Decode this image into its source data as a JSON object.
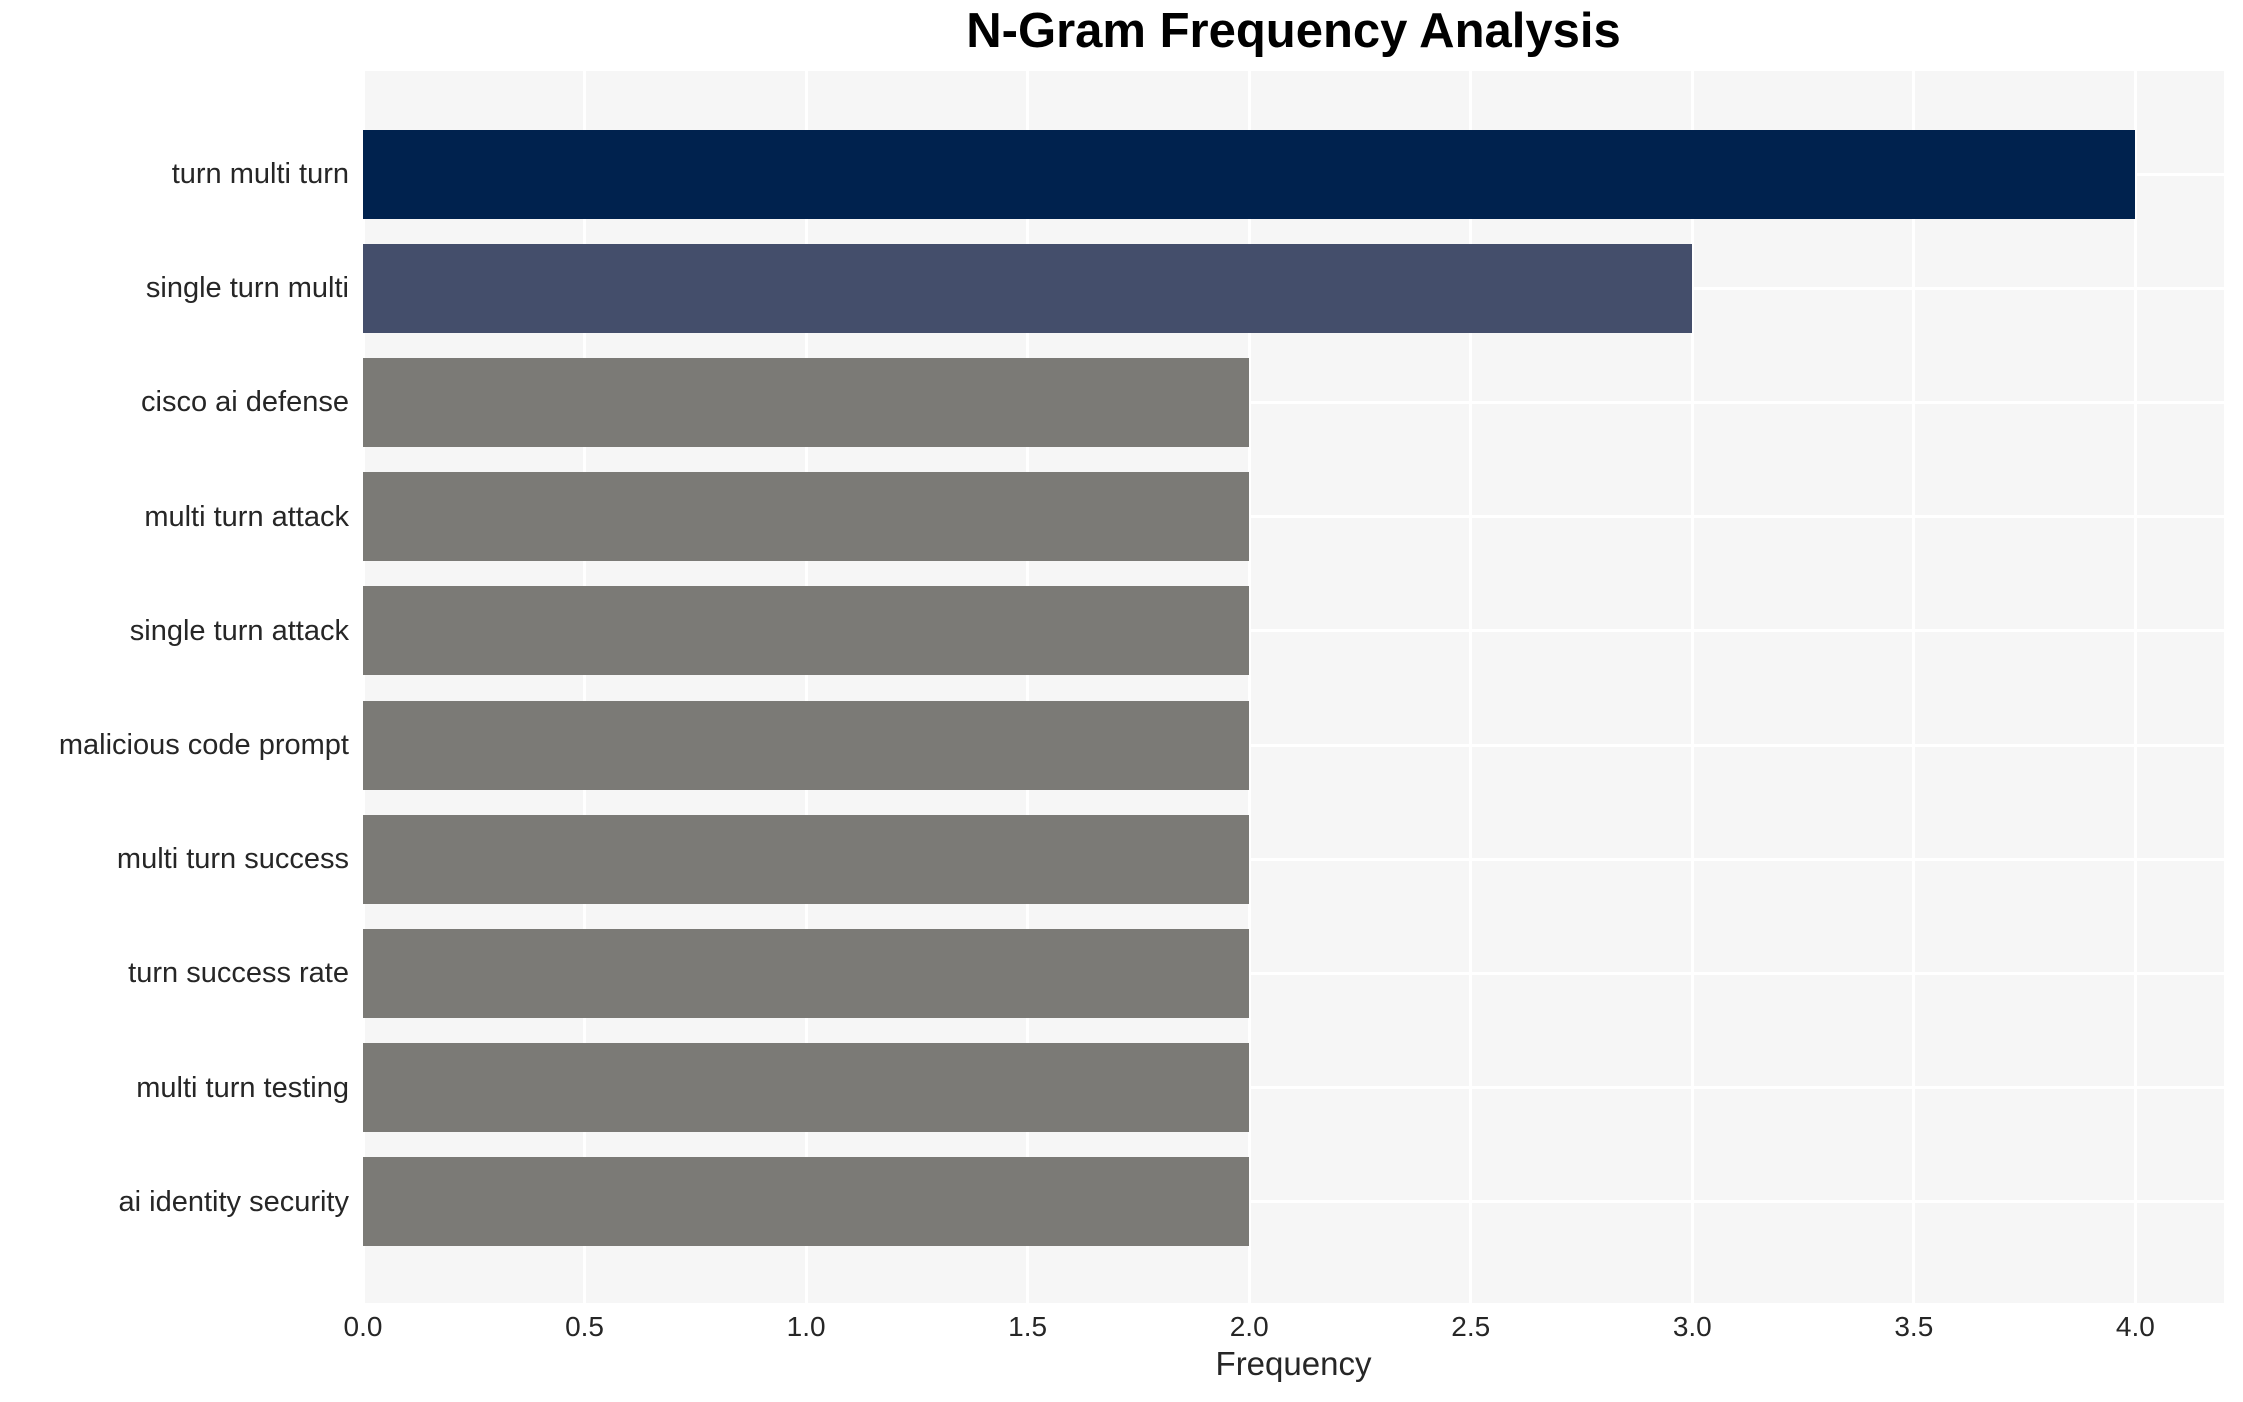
{
  "chart_data": {
    "type": "bar",
    "orientation": "horizontal",
    "title": "N-Gram Frequency Analysis",
    "xlabel": "Frequency",
    "ylabel": "",
    "categories": [
      "turn multi turn",
      "single turn multi",
      "cisco ai defense",
      "multi turn attack",
      "single turn attack",
      "malicious code prompt",
      "multi turn success",
      "turn success rate",
      "multi turn testing",
      "ai identity security"
    ],
    "values": [
      4,
      3,
      2,
      2,
      2,
      2,
      2,
      2,
      2,
      2
    ],
    "bar_colors": [
      "#00224e",
      "#444e6b",
      "#7b7a76",
      "#7b7a76",
      "#7b7a76",
      "#7b7a76",
      "#7b7a76",
      "#7b7a76",
      "#7b7a76",
      "#7b7a76"
    ],
    "xlim": [
      0,
      4.2
    ],
    "xticks": [
      0,
      0.5,
      1,
      1.5,
      2,
      2.5,
      3,
      3.5,
      4
    ],
    "xtick_labels": [
      "0.0",
      "0.5",
      "1.0",
      "1.5",
      "2.0",
      "2.5",
      "3.0",
      "3.5",
      "4.0"
    ],
    "grid": true,
    "legend": false,
    "plot_bg_color": "#f6f6f6",
    "grid_color": "#ffffff",
    "text_color": "#262626",
    "title_color": "#000000"
  }
}
